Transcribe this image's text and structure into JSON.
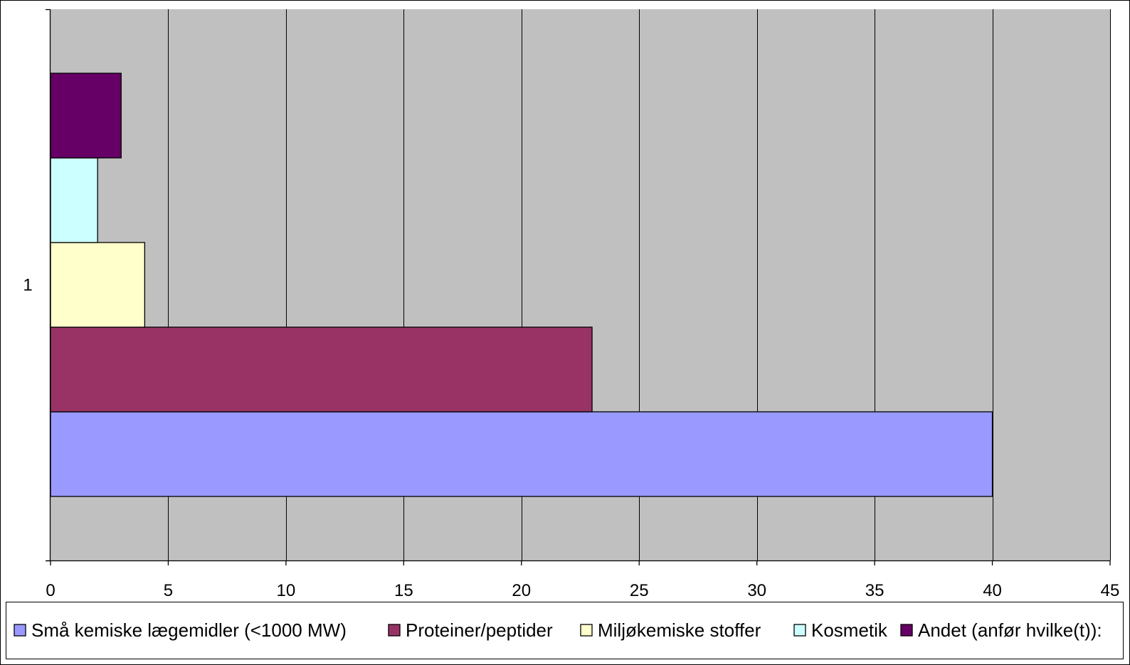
{
  "chart_data": {
    "type": "bar",
    "orientation": "horizontal",
    "categories": [
      "1"
    ],
    "series": [
      {
        "name": "Små kemiske lægemidler (<1000 MW)",
        "values": [
          40
        ],
        "color": "#9999ff"
      },
      {
        "name": "Proteiner/peptider",
        "values": [
          23
        ],
        "color": "#993366"
      },
      {
        "name": "Miljøkemiske stoffer",
        "values": [
          4
        ],
        "color": "#ffffcc"
      },
      {
        "name": "Kosmetik",
        "values": [
          2
        ],
        "color": "#ccffff"
      },
      {
        "name": "Andet (anfør hvilke(t)):",
        "values": [
          3
        ],
        "color": "#660066"
      }
    ],
    "xlim": [
      0,
      45
    ],
    "x_ticks": [
      0,
      5,
      10,
      15,
      20,
      25,
      30,
      35,
      40,
      45
    ],
    "grid": true,
    "legend_position": "bottom",
    "plot_background": "#c0c0c0",
    "title": "",
    "xlabel": "",
    "ylabel": ""
  }
}
